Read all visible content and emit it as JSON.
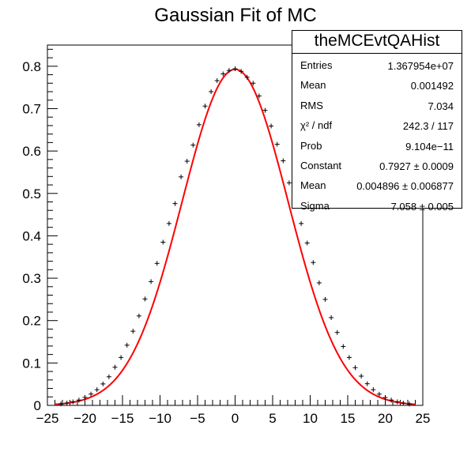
{
  "title": "Gaussian Fit of MC",
  "stats_box": {
    "title": "theMCEvtQAHist",
    "rows": [
      {
        "name": "Entries",
        "value": "1.367954e+07"
      },
      {
        "name": "Mean",
        "value": "0.001492"
      },
      {
        "name": "RMS",
        "value": "7.034"
      },
      {
        "name": "χ² / ndf",
        "value": "242.3 / 117"
      },
      {
        "name": "Prob",
        "value": "9.104e−11"
      },
      {
        "name": "Constant",
        "value": "0.7927 ± 0.0009"
      },
      {
        "name": "Mean",
        "value": "0.004896 ± 0.006877"
      },
      {
        "name": "Sigma",
        "value": "7.058 ± 0.005"
      }
    ]
  },
  "colors": {
    "fit": "#ff0000",
    "data": "#000000",
    "axis": "#000000"
  },
  "chart_data": {
    "type": "scatter",
    "title": "Gaussian Fit of MC",
    "xlabel": "",
    "ylabel": "",
    "xlim": [
      -25,
      25
    ],
    "ylim": [
      0,
      0.85
    ],
    "x_ticks": [
      -25,
      -20,
      -15,
      -10,
      -5,
      0,
      5,
      10,
      15,
      20,
      25
    ],
    "x_tick_labels": [
      "−25",
      "−20",
      "−15",
      "−10",
      "−5",
      "0",
      "5",
      "10",
      "15",
      "20",
      "25"
    ],
    "y_ticks": [
      0,
      0.1,
      0.2,
      0.3,
      0.4,
      0.5,
      0.6,
      0.7,
      0.8
    ],
    "y_tick_labels": [
      "0",
      "0.1",
      "0.2",
      "0.3",
      "0.4",
      "0.5",
      "0.6",
      "0.7",
      "0.8"
    ],
    "grid": false,
    "series": [
      {
        "type": "scatter",
        "x": [
          -23.2,
          -22.4,
          -21.6,
          -20.8,
          -20.0,
          -19.2,
          -18.4,
          -17.6,
          -16.8,
          -16.0,
          -15.2,
          -14.4,
          -13.6,
          -12.8,
          -12.0,
          -11.2,
          -10.4,
          -9.6,
          -8.8,
          -8.0,
          -7.2,
          -6.4,
          -5.6,
          -4.8,
          -4.0,
          -3.2,
          -2.4,
          -1.6,
          -0.8,
          0.0,
          0.8,
          1.6,
          2.4,
          3.2,
          4.0,
          4.8,
          5.6,
          6.4,
          7.2,
          8.0,
          8.8,
          9.6,
          10.4,
          11.2,
          12.0,
          12.8,
          13.6,
          14.4,
          15.2,
          16.0,
          16.8,
          17.6,
          18.4,
          19.2,
          20.0,
          20.8,
          21.6,
          22.4,
          23.2
        ],
        "y": [
          0.0034,
          0.0055,
          0.0084,
          0.0126,
          0.0189,
          0.0267,
          0.037,
          0.0506,
          0.0675,
          0.09,
          0.113,
          0.142,
          0.175,
          0.211,
          0.251,
          0.292,
          0.335,
          0.385,
          0.429,
          0.476,
          0.539,
          0.576,
          0.614,
          0.662,
          0.706,
          0.74,
          0.766,
          0.782,
          0.79,
          0.794,
          0.788,
          0.774,
          0.76,
          0.73,
          0.696,
          0.659,
          0.616,
          0.577,
          0.525,
          0.478,
          0.429,
          0.383,
          0.337,
          0.289,
          0.25,
          0.207,
          0.172,
          0.139,
          0.113,
          0.089,
          0.069,
          0.051,
          0.037,
          0.0265,
          0.0185,
          0.0126,
          0.0084,
          0.0054,
          0.0033
        ]
      },
      {
        "type": "line",
        "function": "gaussian",
        "constant": 0.7927,
        "mean": 0.004896,
        "sigma": 7.058,
        "range": [
          -24,
          24
        ]
      }
    ]
  }
}
